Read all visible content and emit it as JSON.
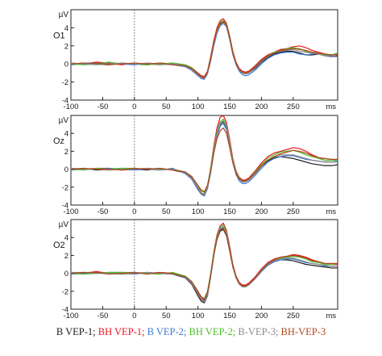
{
  "chart_data": [
    {
      "type": "line",
      "channel": "O1",
      "ylabel": "µV",
      "xlabel": "ms",
      "xlim": [
        -100,
        320
      ],
      "ylim": [
        -4,
        6
      ],
      "xticks": [
        -100,
        -50,
        0,
        50,
        100,
        150,
        200,
        250
      ],
      "yticks": [
        -4,
        -2,
        0,
        2,
        4
      ],
      "grid": false,
      "reference_line_x": 0,
      "x": [
        -100,
        -80,
        -60,
        -40,
        -20,
        0,
        20,
        40,
        60,
        80,
        90,
        100,
        105,
        110,
        115,
        120,
        125,
        130,
        135,
        140,
        145,
        150,
        155,
        160,
        165,
        170,
        175,
        180,
        190,
        200,
        210,
        220,
        230,
        240,
        250,
        260,
        270,
        280,
        290,
        300,
        310,
        320
      ],
      "series": [
        {
          "name": "B VEP-1",
          "values": [
            0.0,
            0.1,
            0.0,
            -0.1,
            0.1,
            0.0,
            -0.1,
            0.1,
            0.0,
            -0.2,
            -0.5,
            -1.2,
            -1.5,
            -1.6,
            -1.0,
            0.5,
            2.3,
            3.7,
            4.4,
            4.6,
            4.2,
            2.8,
            1.2,
            0.0,
            -0.7,
            -1.0,
            -1.1,
            -1.0,
            -0.5,
            0.2,
            0.7,
            1.1,
            1.3,
            1.4,
            1.4,
            1.2,
            1.0,
            1.0,
            1.1,
            0.9,
            0.8,
            0.9
          ]
        },
        {
          "name": "BH VEP-1",
          "values": [
            0.1,
            0.0,
            0.2,
            0.1,
            -0.1,
            0.1,
            0.0,
            -0.1,
            0.1,
            -0.1,
            -0.4,
            -1.0,
            -1.3,
            -1.4,
            -0.8,
            0.8,
            2.6,
            4.0,
            4.8,
            5.0,
            4.5,
            3.1,
            1.4,
            0.2,
            -0.5,
            -0.8,
            -0.9,
            -0.8,
            -0.2,
            0.5,
            1.0,
            1.3,
            1.6,
            1.7,
            1.9,
            2.0,
            1.8,
            1.5,
            1.3,
            1.1,
            1.0,
            1.1
          ]
        },
        {
          "name": "B VEP-2",
          "values": [
            -0.1,
            0.0,
            0.1,
            0.0,
            0.0,
            -0.1,
            0.1,
            0.0,
            -0.1,
            -0.3,
            -0.7,
            -1.3,
            -1.6,
            -1.7,
            -1.1,
            0.3,
            2.0,
            3.4,
            4.2,
            4.5,
            4.1,
            2.7,
            1.0,
            -0.1,
            -0.8,
            -1.2,
            -1.3,
            -1.2,
            -0.7,
            0.0,
            0.6,
            1.0,
            1.2,
            1.3,
            1.3,
            1.1,
            1.0,
            1.1,
            1.2,
            1.0,
            0.9,
            0.8
          ]
        },
        {
          "name": "BH VEP-2",
          "values": [
            0.0,
            -0.1,
            0.0,
            0.2,
            0.0,
            0.1,
            -0.1,
            0.0,
            0.1,
            -0.1,
            -0.4,
            -1.1,
            -1.4,
            -1.5,
            -0.9,
            0.6,
            2.4,
            3.8,
            4.6,
            4.8,
            4.4,
            3.0,
            1.3,
            0.1,
            -0.6,
            -0.9,
            -1.0,
            -0.9,
            -0.3,
            0.4,
            0.9,
            1.3,
            1.5,
            1.7,
            1.8,
            1.7,
            1.4,
            1.3,
            1.2,
            1.0,
            1.0,
            1.2
          ]
        },
        {
          "name": "B-VEP-3",
          "values": [
            0.1,
            0.0,
            -0.1,
            0.0,
            0.1,
            0.0,
            0.1,
            -0.1,
            0.0,
            -0.2,
            -0.6,
            -1.2,
            -1.5,
            -1.6,
            -1.0,
            0.4,
            2.2,
            3.6,
            4.3,
            4.6,
            4.2,
            2.8,
            1.1,
            0.0,
            -0.7,
            -1.0,
            -1.1,
            -1.0,
            -0.4,
            0.3,
            0.8,
            1.2,
            1.4,
            1.5,
            1.6,
            1.4,
            1.3,
            1.2,
            1.1,
            0.9,
            0.8,
            0.8
          ]
        },
        {
          "name": "BH-VEP-3",
          "values": [
            0.0,
            0.1,
            0.1,
            -0.1,
            0.0,
            0.1,
            0.0,
            0.1,
            -0.1,
            -0.2,
            -0.5,
            -1.1,
            -1.4,
            -1.5,
            -0.9,
            0.6,
            2.4,
            3.8,
            4.5,
            4.7,
            4.3,
            2.9,
            1.2,
            0.1,
            -0.6,
            -0.9,
            -1.0,
            -0.9,
            -0.3,
            0.4,
            0.9,
            1.2,
            1.5,
            1.6,
            1.7,
            1.6,
            1.5,
            1.3,
            1.2,
            1.1,
            1.0,
            1.0
          ]
        }
      ]
    },
    {
      "type": "line",
      "channel": "Oz",
      "ylabel": "µV",
      "xlabel": "ms",
      "xlim": [
        -100,
        320
      ],
      "ylim": [
        -4,
        6
      ],
      "xticks": [
        -100,
        -50,
        0,
        50,
        100,
        150,
        200,
        250
      ],
      "yticks": [
        -4,
        -2,
        0,
        2,
        4
      ],
      "grid": false,
      "reference_line_x": 0,
      "x": [
        -100,
        -80,
        -60,
        -40,
        -20,
        0,
        20,
        40,
        60,
        80,
        90,
        100,
        105,
        110,
        115,
        120,
        125,
        130,
        135,
        140,
        145,
        150,
        155,
        160,
        165,
        170,
        175,
        180,
        190,
        200,
        210,
        220,
        230,
        240,
        250,
        260,
        270,
        280,
        290,
        300,
        310,
        320
      ],
      "series": [
        {
          "name": "B VEP-1",
          "values": [
            0.0,
            0.1,
            -0.1,
            0.0,
            0.1,
            0.0,
            -0.1,
            0.1,
            -0.1,
            -0.4,
            -1.0,
            -2.2,
            -2.7,
            -2.8,
            -2.0,
            -0.3,
            2.0,
            3.9,
            5.0,
            5.3,
            4.6,
            2.8,
            0.9,
            -0.4,
            -1.1,
            -1.4,
            -1.4,
            -1.2,
            -0.5,
            0.3,
            0.9,
            1.3,
            1.4,
            1.3,
            1.2,
            1.0,
            0.8,
            0.6,
            0.5,
            0.4,
            0.4,
            0.5
          ]
        },
        {
          "name": "BH VEP-1",
          "values": [
            0.1,
            0.0,
            0.1,
            0.1,
            -0.1,
            0.0,
            0.1,
            0.0,
            0.0,
            -0.3,
            -0.9,
            -2.0,
            -2.6,
            -2.9,
            -2.1,
            0.1,
            2.6,
            4.6,
            5.8,
            6.0,
            5.2,
            3.3,
            1.2,
            -0.2,
            -0.9,
            -1.2,
            -1.2,
            -1.0,
            -0.2,
            0.7,
            1.4,
            1.8,
            2.0,
            2.2,
            2.4,
            2.3,
            2.0,
            1.6,
            1.3,
            1.0,
            1.0,
            1.1
          ]
        },
        {
          "name": "B VEP-2",
          "values": [
            -0.1,
            0.0,
            0.0,
            0.1,
            0.0,
            -0.1,
            0.0,
            -0.1,
            0.1,
            -0.5,
            -1.1,
            -2.3,
            -2.8,
            -3.0,
            -2.2,
            -0.4,
            1.8,
            3.7,
            4.8,
            5.1,
            4.4,
            2.6,
            0.7,
            -0.6,
            -1.3,
            -1.6,
            -1.6,
            -1.4,
            -0.7,
            0.1,
            0.8,
            1.2,
            1.4,
            1.5,
            1.5,
            1.3,
            1.1,
            1.0,
            0.9,
            0.8,
            0.8,
            0.9
          ]
        },
        {
          "name": "BH VEP-2",
          "values": [
            0.0,
            -0.1,
            0.1,
            0.0,
            0.1,
            0.1,
            0.0,
            0.0,
            0.0,
            -0.3,
            -0.8,
            -1.9,
            -2.4,
            -2.6,
            -1.8,
            0.1,
            2.3,
            4.2,
            5.3,
            5.6,
            4.9,
            3.0,
            1.1,
            -0.3,
            -1.0,
            -1.3,
            -1.3,
            -1.1,
            -0.3,
            0.5,
            1.2,
            1.6,
            1.9,
            2.0,
            2.1,
            1.9,
            1.6,
            1.4,
            1.2,
            1.0,
            1.0,
            1.0
          ]
        },
        {
          "name": "B-VEP-3",
          "values": [
            0.1,
            0.0,
            0.0,
            -0.1,
            0.0,
            0.0,
            0.1,
            -0.1,
            0.0,
            -0.4,
            -1.0,
            -2.1,
            -2.7,
            -2.9,
            -2.1,
            -0.2,
            2.1,
            4.0,
            5.1,
            5.4,
            4.7,
            2.9,
            1.0,
            -0.4,
            -1.1,
            -1.4,
            -1.4,
            -1.2,
            -0.5,
            0.3,
            1.0,
            1.4,
            1.6,
            1.6,
            1.6,
            1.4,
            1.2,
            1.0,
            0.9,
            0.8,
            0.8,
            0.8
          ]
        },
        {
          "name": "BH-VEP-3",
          "values": [
            0.0,
            0.1,
            0.0,
            0.0,
            -0.1,
            0.1,
            0.0,
            0.1,
            -0.1,
            -0.3,
            -0.8,
            -1.8,
            -2.3,
            -2.5,
            -1.8,
            -0.2,
            1.8,
            3.4,
            4.3,
            4.6,
            4.0,
            2.4,
            0.7,
            -0.5,
            -1.1,
            -1.3,
            -1.3,
            -1.1,
            -0.4,
            0.4,
            1.0,
            1.4,
            1.7,
            1.9,
            2.1,
            2.0,
            1.8,
            1.5,
            1.3,
            1.2,
            1.1,
            1.1
          ]
        }
      ]
    },
    {
      "type": "line",
      "channel": "O2",
      "ylabel": "µV",
      "xlabel": "ms",
      "xlim": [
        -100,
        320
      ],
      "ylim": [
        -4,
        6
      ],
      "xticks": [
        -100,
        -50,
        0,
        50,
        100,
        150,
        200,
        250
      ],
      "yticks": [
        -4,
        -2,
        0,
        2,
        4
      ],
      "grid": false,
      "reference_line_x": 0,
      "x": [
        -100,
        -80,
        -60,
        -40,
        -20,
        0,
        20,
        40,
        60,
        80,
        90,
        100,
        105,
        110,
        115,
        120,
        125,
        130,
        135,
        140,
        145,
        150,
        155,
        160,
        165,
        170,
        175,
        180,
        190,
        200,
        210,
        220,
        230,
        240,
        250,
        260,
        270,
        280,
        290,
        300,
        310,
        320
      ],
      "series": [
        {
          "name": "B VEP-1",
          "values": [
            0.0,
            0.1,
            0.0,
            0.1,
            0.1,
            0.0,
            0.1,
            0.0,
            -0.1,
            -0.5,
            -1.2,
            -2.5,
            -3.1,
            -3.3,
            -2.5,
            -0.4,
            2.0,
            3.8,
            4.7,
            4.9,
            4.2,
            2.5,
            0.7,
            -0.5,
            -1.2,
            -1.5,
            -1.5,
            -1.3,
            -0.6,
            0.2,
            0.9,
            1.3,
            1.5,
            1.5,
            1.4,
            1.2,
            1.0,
            0.9,
            0.8,
            0.7,
            0.6,
            0.6
          ]
        },
        {
          "name": "BH VEP-1",
          "values": [
            0.1,
            0.0,
            0.2,
            0.0,
            0.0,
            0.1,
            0.0,
            0.1,
            0.0,
            -0.3,
            -1.0,
            -2.2,
            -2.8,
            -3.0,
            -2.2,
            -0.1,
            2.4,
            4.3,
            5.3,
            5.6,
            4.8,
            3.0,
            1.0,
            -0.3,
            -1.0,
            -1.3,
            -1.3,
            -1.1,
            -0.4,
            0.5,
            1.2,
            1.6,
            1.8,
            1.9,
            2.1,
            2.0,
            1.8,
            1.5,
            1.3,
            1.1,
            1.0,
            1.0
          ]
        },
        {
          "name": "B VEP-2",
          "values": [
            -0.1,
            0.0,
            0.1,
            0.0,
            0.0,
            -0.1,
            0.1,
            0.0,
            0.0,
            -0.5,
            -1.1,
            -2.3,
            -2.9,
            -3.1,
            -2.3,
            -0.3,
            2.0,
            3.9,
            4.9,
            5.1,
            4.4,
            2.6,
            0.8,
            -0.5,
            -1.2,
            -1.5,
            -1.5,
            -1.3,
            -0.6,
            0.2,
            0.9,
            1.3,
            1.5,
            1.6,
            1.6,
            1.4,
            1.2,
            1.1,
            1.0,
            0.8,
            0.8,
            0.8
          ]
        },
        {
          "name": "BH VEP-2",
          "values": [
            0.0,
            -0.1,
            0.0,
            0.1,
            0.1,
            0.1,
            0.0,
            -0.1,
            0.1,
            -0.3,
            -0.9,
            -2.0,
            -2.6,
            -2.8,
            -2.0,
            0.0,
            2.3,
            4.1,
            5.1,
            5.4,
            4.6,
            2.8,
            0.9,
            -0.4,
            -1.1,
            -1.4,
            -1.4,
            -1.2,
            -0.5,
            0.4,
            1.1,
            1.5,
            1.7,
            1.8,
            1.9,
            1.8,
            1.6,
            1.3,
            1.2,
            1.0,
            1.0,
            1.1
          ]
        },
        {
          "name": "B-VEP-3",
          "values": [
            0.1,
            0.1,
            0.0,
            0.0,
            -0.1,
            0.0,
            0.1,
            0.0,
            -0.1,
            -0.4,
            -1.1,
            -2.3,
            -2.9,
            -3.2,
            -2.4,
            -0.3,
            2.1,
            4.0,
            5.0,
            5.2,
            4.5,
            2.7,
            0.8,
            -0.5,
            -1.2,
            -1.5,
            -1.5,
            -1.3,
            -0.6,
            0.3,
            1.0,
            1.4,
            1.6,
            1.7,
            1.7,
            1.5,
            1.3,
            1.1,
            1.0,
            0.9,
            0.8,
            0.8
          ]
        },
        {
          "name": "BH-VEP-3",
          "values": [
            0.0,
            0.1,
            0.1,
            -0.1,
            0.0,
            0.1,
            -0.1,
            0.1,
            0.0,
            -0.4,
            -0.9,
            -2.0,
            -2.6,
            -2.9,
            -2.1,
            -0.2,
            2.1,
            3.9,
            4.8,
            5.0,
            4.3,
            2.6,
            0.8,
            -0.4,
            -1.1,
            -1.4,
            -1.4,
            -1.2,
            -0.5,
            0.4,
            1.1,
            1.5,
            1.8,
            1.9,
            2.0,
            1.9,
            1.7,
            1.4,
            1.3,
            1.1,
            1.1,
            1.1
          ]
        }
      ]
    }
  ],
  "colors": {
    "B VEP-1": "#1a1a1a",
    "BH VEP-1": "#e8141e",
    "B VEP-2": "#3c78d8",
    "BH VEP-2": "#4cbe2c",
    "B-VEP-3": "#8a8a8a",
    "BH-VEP-3": "#b0461e"
  },
  "legend": {
    "separator": "; ",
    "entries": [
      "B VEP-1",
      "BH VEP-1",
      "B VEP-2",
      "BH VEP-2",
      "B-VEP-3",
      "BH-VEP-3"
    ]
  }
}
